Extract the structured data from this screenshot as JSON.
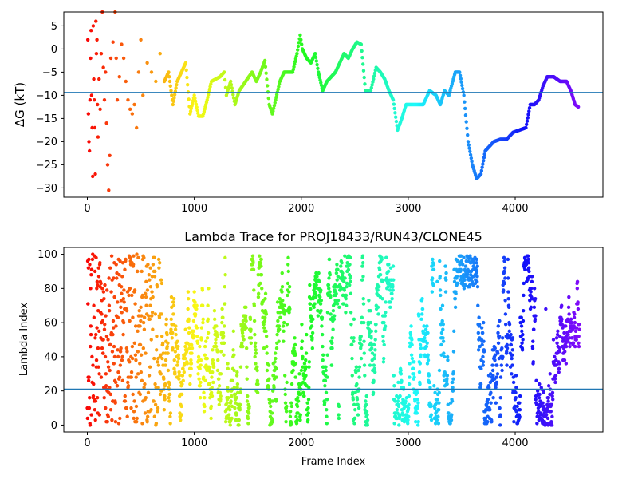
{
  "chart_data": [
    {
      "type": "scatter",
      "title": "",
      "ylabel": "ΔG (kT)",
      "xlabel": "",
      "xlim": [
        -220,
        4820
      ],
      "ylim": [
        -32,
        8
      ],
      "xticks": [
        0,
        1000,
        2000,
        3000,
        4000
      ],
      "yticks": [
        5,
        0,
        -5,
        -10,
        -15,
        -20,
        -25,
        -30
      ],
      "hline": -9.4,
      "hline_color": "#1f77b4",
      "colormap": "rainbow (red at frame 0 → violet at last frame)",
      "points": [
        [
          5,
          2
        ],
        [
          10,
          -14
        ],
        [
          15,
          -20
        ],
        [
          20,
          -22
        ],
        [
          25,
          -11
        ],
        [
          30,
          -2
        ],
        [
          35,
          4
        ],
        [
          40,
          -10
        ],
        [
          45,
          -17
        ],
        [
          50,
          -27.5
        ],
        [
          55,
          5
        ],
        [
          60,
          -6.5
        ],
        [
          65,
          -11
        ],
        [
          70,
          -17
        ],
        [
          75,
          -27
        ],
        [
          80,
          6
        ],
        [
          85,
          -1
        ],
        [
          90,
          2
        ],
        [
          95,
          -12
        ],
        [
          100,
          -19
        ],
        [
          110,
          -6.5
        ],
        [
          120,
          -13
        ],
        [
          130,
          -1
        ],
        [
          140,
          8
        ],
        [
          150,
          -4
        ],
        [
          160,
          -11
        ],
        [
          170,
          -5
        ],
        [
          180,
          -16
        ],
        [
          190,
          -25
        ],
        [
          200,
          -30.5
        ],
        [
          210,
          -23
        ],
        [
          220,
          -2
        ],
        [
          240,
          1.5
        ],
        [
          260,
          8
        ],
        [
          270,
          -2
        ],
        [
          280,
          -11
        ],
        [
          300,
          -6
        ],
        [
          320,
          1
        ],
        [
          340,
          -2
        ],
        [
          360,
          -7
        ],
        [
          380,
          -11
        ],
        [
          400,
          -13
        ],
        [
          420,
          -14
        ],
        [
          440,
          -12
        ],
        [
          460,
          -17
        ],
        [
          480,
          -5
        ],
        [
          500,
          2
        ],
        [
          520,
          -10
        ],
        [
          560,
          -3
        ],
        [
          600,
          -5
        ],
        [
          640,
          -7
        ],
        [
          680,
          -1
        ],
        [
          720,
          -7
        ],
        [
          760,
          -5
        ],
        [
          800,
          -12
        ],
        [
          840,
          -7
        ],
        [
          880,
          -5
        ],
        [
          920,
          -3
        ],
        [
          960,
          -14
        ],
        [
          1000,
          -10
        ],
        [
          1040,
          -14.5
        ],
        [
          1080,
          -14.5
        ],
        [
          1120,
          -11
        ],
        [
          1160,
          -7
        ],
        [
          1200,
          -6.5
        ],
        [
          1240,
          -6
        ],
        [
          1280,
          -5
        ],
        [
          1300,
          -10
        ],
        [
          1340,
          -7
        ],
        [
          1380,
          -12
        ],
        [
          1420,
          -9
        ],
        [
          1480,
          -7
        ],
        [
          1540,
          -5
        ],
        [
          1580,
          -7
        ],
        [
          1620,
          -5
        ],
        [
          1660,
          -2.5
        ],
        [
          1700,
          -12
        ],
        [
          1730,
          -14
        ],
        [
          1760,
          -11
        ],
        [
          1800,
          -7
        ],
        [
          1840,
          -5
        ],
        [
          1880,
          -5
        ],
        [
          1920,
          -5
        ],
        [
          1960,
          -1
        ],
        [
          1990,
          3
        ],
        [
          2010,
          0
        ],
        [
          2050,
          -2
        ],
        [
          2090,
          -3
        ],
        [
          2130,
          -1
        ],
        [
          2160,
          -5
        ],
        [
          2200,
          -9
        ],
        [
          2240,
          -7
        ],
        [
          2280,
          -6
        ],
        [
          2320,
          -5
        ],
        [
          2360,
          -3
        ],
        [
          2400,
          -1
        ],
        [
          2440,
          -2
        ],
        [
          2480,
          0
        ],
        [
          2520,
          1.5
        ],
        [
          2560,
          1
        ],
        [
          2600,
          -9
        ],
        [
          2650,
          -9
        ],
        [
          2700,
          -4
        ],
        [
          2740,
          -5
        ],
        [
          2780,
          -6.5
        ],
        [
          2820,
          -9
        ],
        [
          2860,
          -11
        ],
        [
          2900,
          -17.5
        ],
        [
          2940,
          -15
        ],
        [
          2980,
          -12
        ],
        [
          3020,
          -12
        ],
        [
          3080,
          -12
        ],
        [
          3140,
          -12
        ],
        [
          3200,
          -9
        ],
        [
          3260,
          -10
        ],
        [
          3300,
          -12
        ],
        [
          3340,
          -9
        ],
        [
          3380,
          -10
        ],
        [
          3440,
          -5
        ],
        [
          3480,
          -5
        ],
        [
          3520,
          -10
        ],
        [
          3560,
          -20
        ],
        [
          3600,
          -25
        ],
        [
          3640,
          -28
        ],
        [
          3680,
          -27
        ],
        [
          3720,
          -22
        ],
        [
          3760,
          -21
        ],
        [
          3800,
          -20
        ],
        [
          3860,
          -19.5
        ],
        [
          3920,
          -19.5
        ],
        [
          3980,
          -18
        ],
        [
          4040,
          -17.5
        ],
        [
          4100,
          -17
        ],
        [
          4140,
          -12
        ],
        [
          4180,
          -12
        ],
        [
          4220,
          -11
        ],
        [
          4260,
          -8
        ],
        [
          4300,
          -6
        ],
        [
          4360,
          -6
        ],
        [
          4420,
          -7
        ],
        [
          4480,
          -7
        ],
        [
          4520,
          -9
        ],
        [
          4560,
          -12
        ],
        [
          4590,
          -12.5
        ]
      ]
    },
    {
      "type": "scatter",
      "title": "Lambda Trace for PROJ18433/RUN43/CLONE45",
      "xlabel": "Frame Index",
      "ylabel": "Lambda Index",
      "xlim": [
        -220,
        4820
      ],
      "ylim": [
        -4,
        104
      ],
      "xticks": [
        0,
        1000,
        2000,
        3000,
        4000
      ],
      "yticks": [
        0,
        20,
        40,
        60,
        80,
        100
      ],
      "hline": 21,
      "hline_color": "#1f77b4",
      "colormap": "rainbow (red at frame 0 → violet at last frame)",
      "x_range": [
        0,
        4600
      ],
      "n_points": 2300
    }
  ]
}
